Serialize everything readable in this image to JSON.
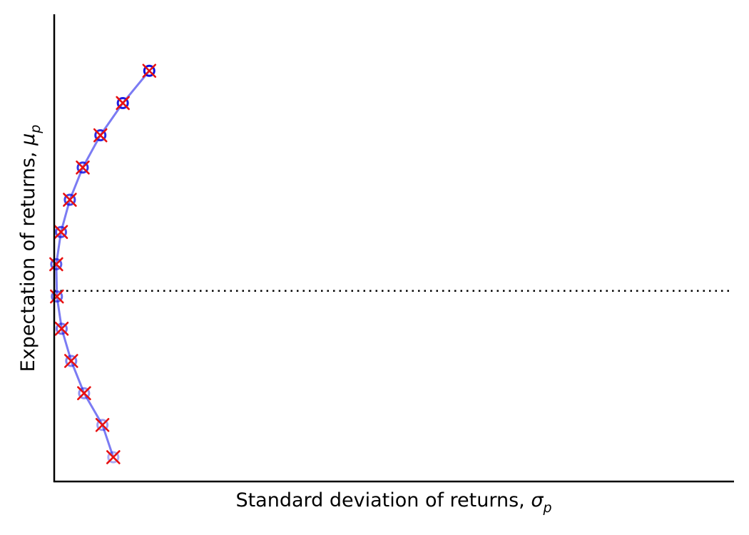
{
  "chart_data": {
    "type": "line",
    "xlabel_main": "Standard deviation of returns, ",
    "xlabel_symbol": "σ",
    "xlabel_sub": "p",
    "ylabel_main": "Expectation of returns, ",
    "ylabel_symbol": "μ",
    "ylabel_sub": "p",
    "xlim": [
      0,
      1
    ],
    "ylim": [
      0,
      1
    ],
    "grid": false,
    "legend": "none",
    "ticks": "none",
    "min_variance_return": 0.408,
    "series": [
      {
        "kind": "line",
        "color": "#7b7bf3",
        "points": [
          {
            "x": 0.087,
            "y": 0.052
          },
          {
            "x": 0.071,
            "y": 0.121
          },
          {
            "x": 0.044,
            "y": 0.189
          },
          {
            "x": 0.025,
            "y": 0.258
          },
          {
            "x": 0.011,
            "y": 0.327
          },
          {
            "x": 0.004,
            "y": 0.396
          },
          {
            "x": 0.003,
            "y": 0.465
          },
          {
            "x": 0.01,
            "y": 0.534
          },
          {
            "x": 0.023,
            "y": 0.603
          },
          {
            "x": 0.042,
            "y": 0.672
          },
          {
            "x": 0.068,
            "y": 0.741
          },
          {
            "x": 0.101,
            "y": 0.81
          },
          {
            "x": 0.14,
            "y": 0.879
          }
        ]
      }
    ],
    "markers_circle_color": "#1010e0",
    "markers_cross_color": "#e81010"
  }
}
